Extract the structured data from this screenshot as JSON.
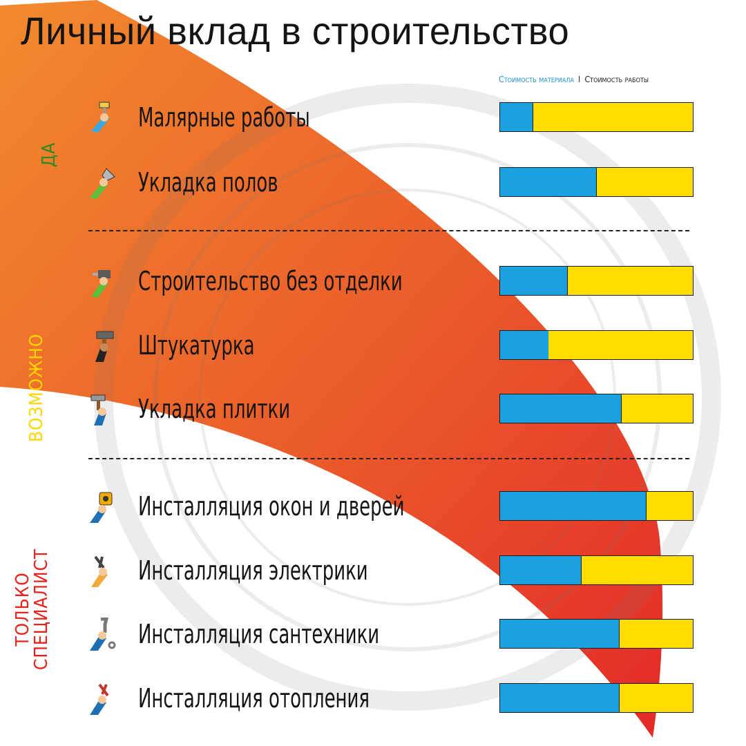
{
  "title": "Личный вклад в строительство",
  "legend": {
    "material_label": "Стоимость материала",
    "separator": "I",
    "labor_label": "Стоимость работы"
  },
  "colors": {
    "material": "#1ba1e2",
    "labor": "#ffdd00",
    "group_yes": "#2f8a1f",
    "group_maybe": "#ffd600",
    "group_specialist": "#e8211d",
    "wedge_start": "#f28a2e",
    "wedge_end": "#e32929"
  },
  "groups": {
    "yes": "ДА",
    "maybe": "ВОЗМОЖНО",
    "specialist_line1": "ТОЛЬКО",
    "specialist_line2": "СПЕЦИАЛИСТ"
  },
  "chart_data": {
    "type": "bar",
    "stacked": true,
    "orientation": "horizontal",
    "categories": [
      "Малярные работы",
      "Укладка полов",
      "Строительство без отделки",
      "Штукатурка",
      "Укладка плитки",
      "Инсталляция окон и дверей",
      "Инсталляция электрики",
      "Инсталляция сантехники",
      "Инсталляция отопления"
    ],
    "series": [
      {
        "name": "Стоимость материала",
        "values": [
          17,
          50,
          35,
          25,
          63,
          76,
          42,
          62,
          62
        ]
      },
      {
        "name": "Стоимость работы",
        "values": [
          83,
          50,
          65,
          75,
          37,
          24,
          58,
          38,
          38
        ]
      }
    ],
    "category_groups": [
      "ДА",
      "ДА",
      "ВОЗМОЖНО",
      "ВОЗМОЖНО",
      "ВОЗМОЖНО",
      "ТОЛЬКО СПЕЦИАЛИСТ",
      "ТОЛЬКО СПЕЦИАЛИСТ",
      "ТОЛЬКО СПЕЦИАЛИСТ",
      "ТОЛЬКО СПЕЦИАЛИСТ"
    ],
    "icons": [
      "paint-roller-hand-icon",
      "trowel-hand-icon",
      "drill-hand-icon",
      "hammer-hand-icon",
      "tile-hammer-hand-icon",
      "tape-measure-hand-icon",
      "pliers-hand-icon",
      "wrench-hand-icon",
      "pipe-pliers-hand-icon"
    ],
    "unit": "%",
    "xlim": [
      0,
      100
    ],
    "legend_position": "top-right",
    "grid": false
  }
}
